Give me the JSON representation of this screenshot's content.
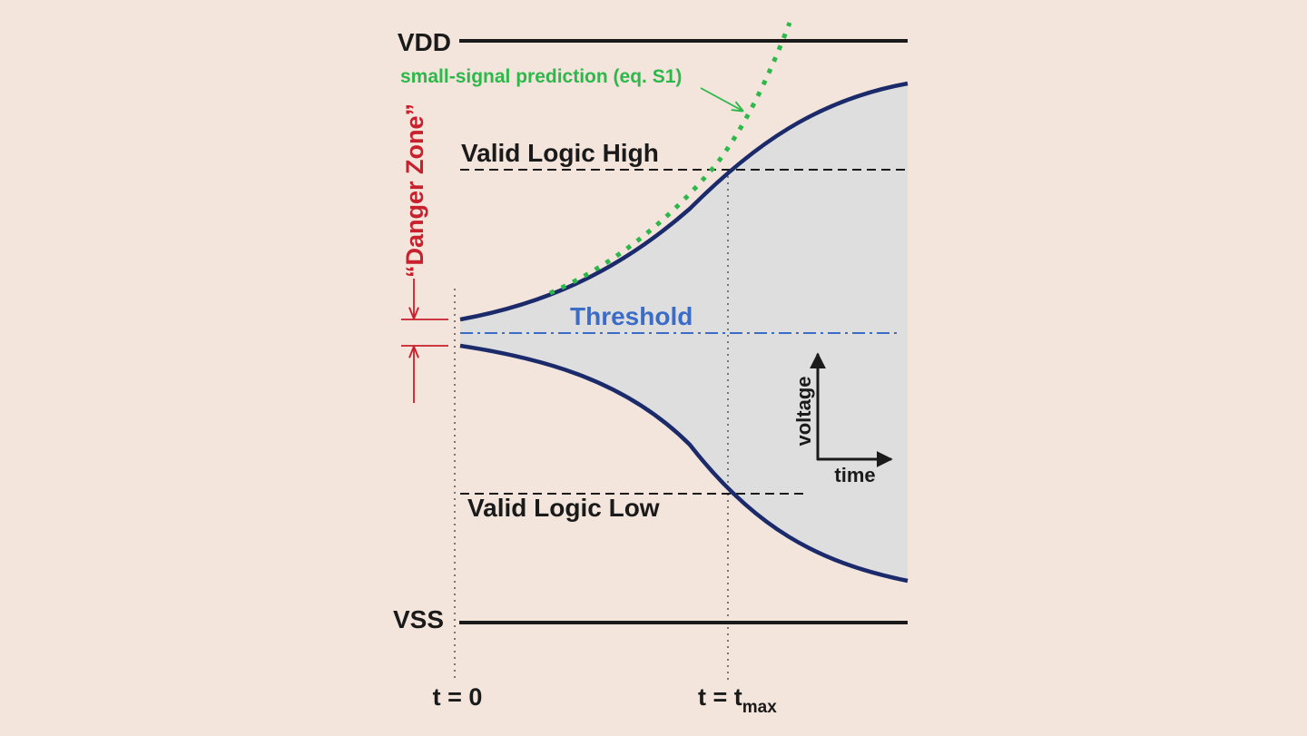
{
  "colors": {
    "background": "#f3e4dc",
    "rail": "#1a1a1a",
    "curve": "#1b2a6b",
    "fill": "#dedede",
    "threshold": "#3a6cc8",
    "prediction": "#2db84a",
    "danger": "#c8202c",
    "guide": "#777777"
  },
  "labels": {
    "vdd": "VDD",
    "vss": "VSS",
    "valid_high": "Valid Logic High",
    "valid_low": "Valid Logic Low",
    "threshold": "Threshold",
    "prediction": "small-signal prediction (eq. S1)",
    "danger_zone": "“Danger Zone”",
    "t0": "t = 0",
    "tmax_prefix": "t = t",
    "tmax_sub": "max",
    "axis_voltage": "voltage",
    "axis_time": "time"
  }
}
